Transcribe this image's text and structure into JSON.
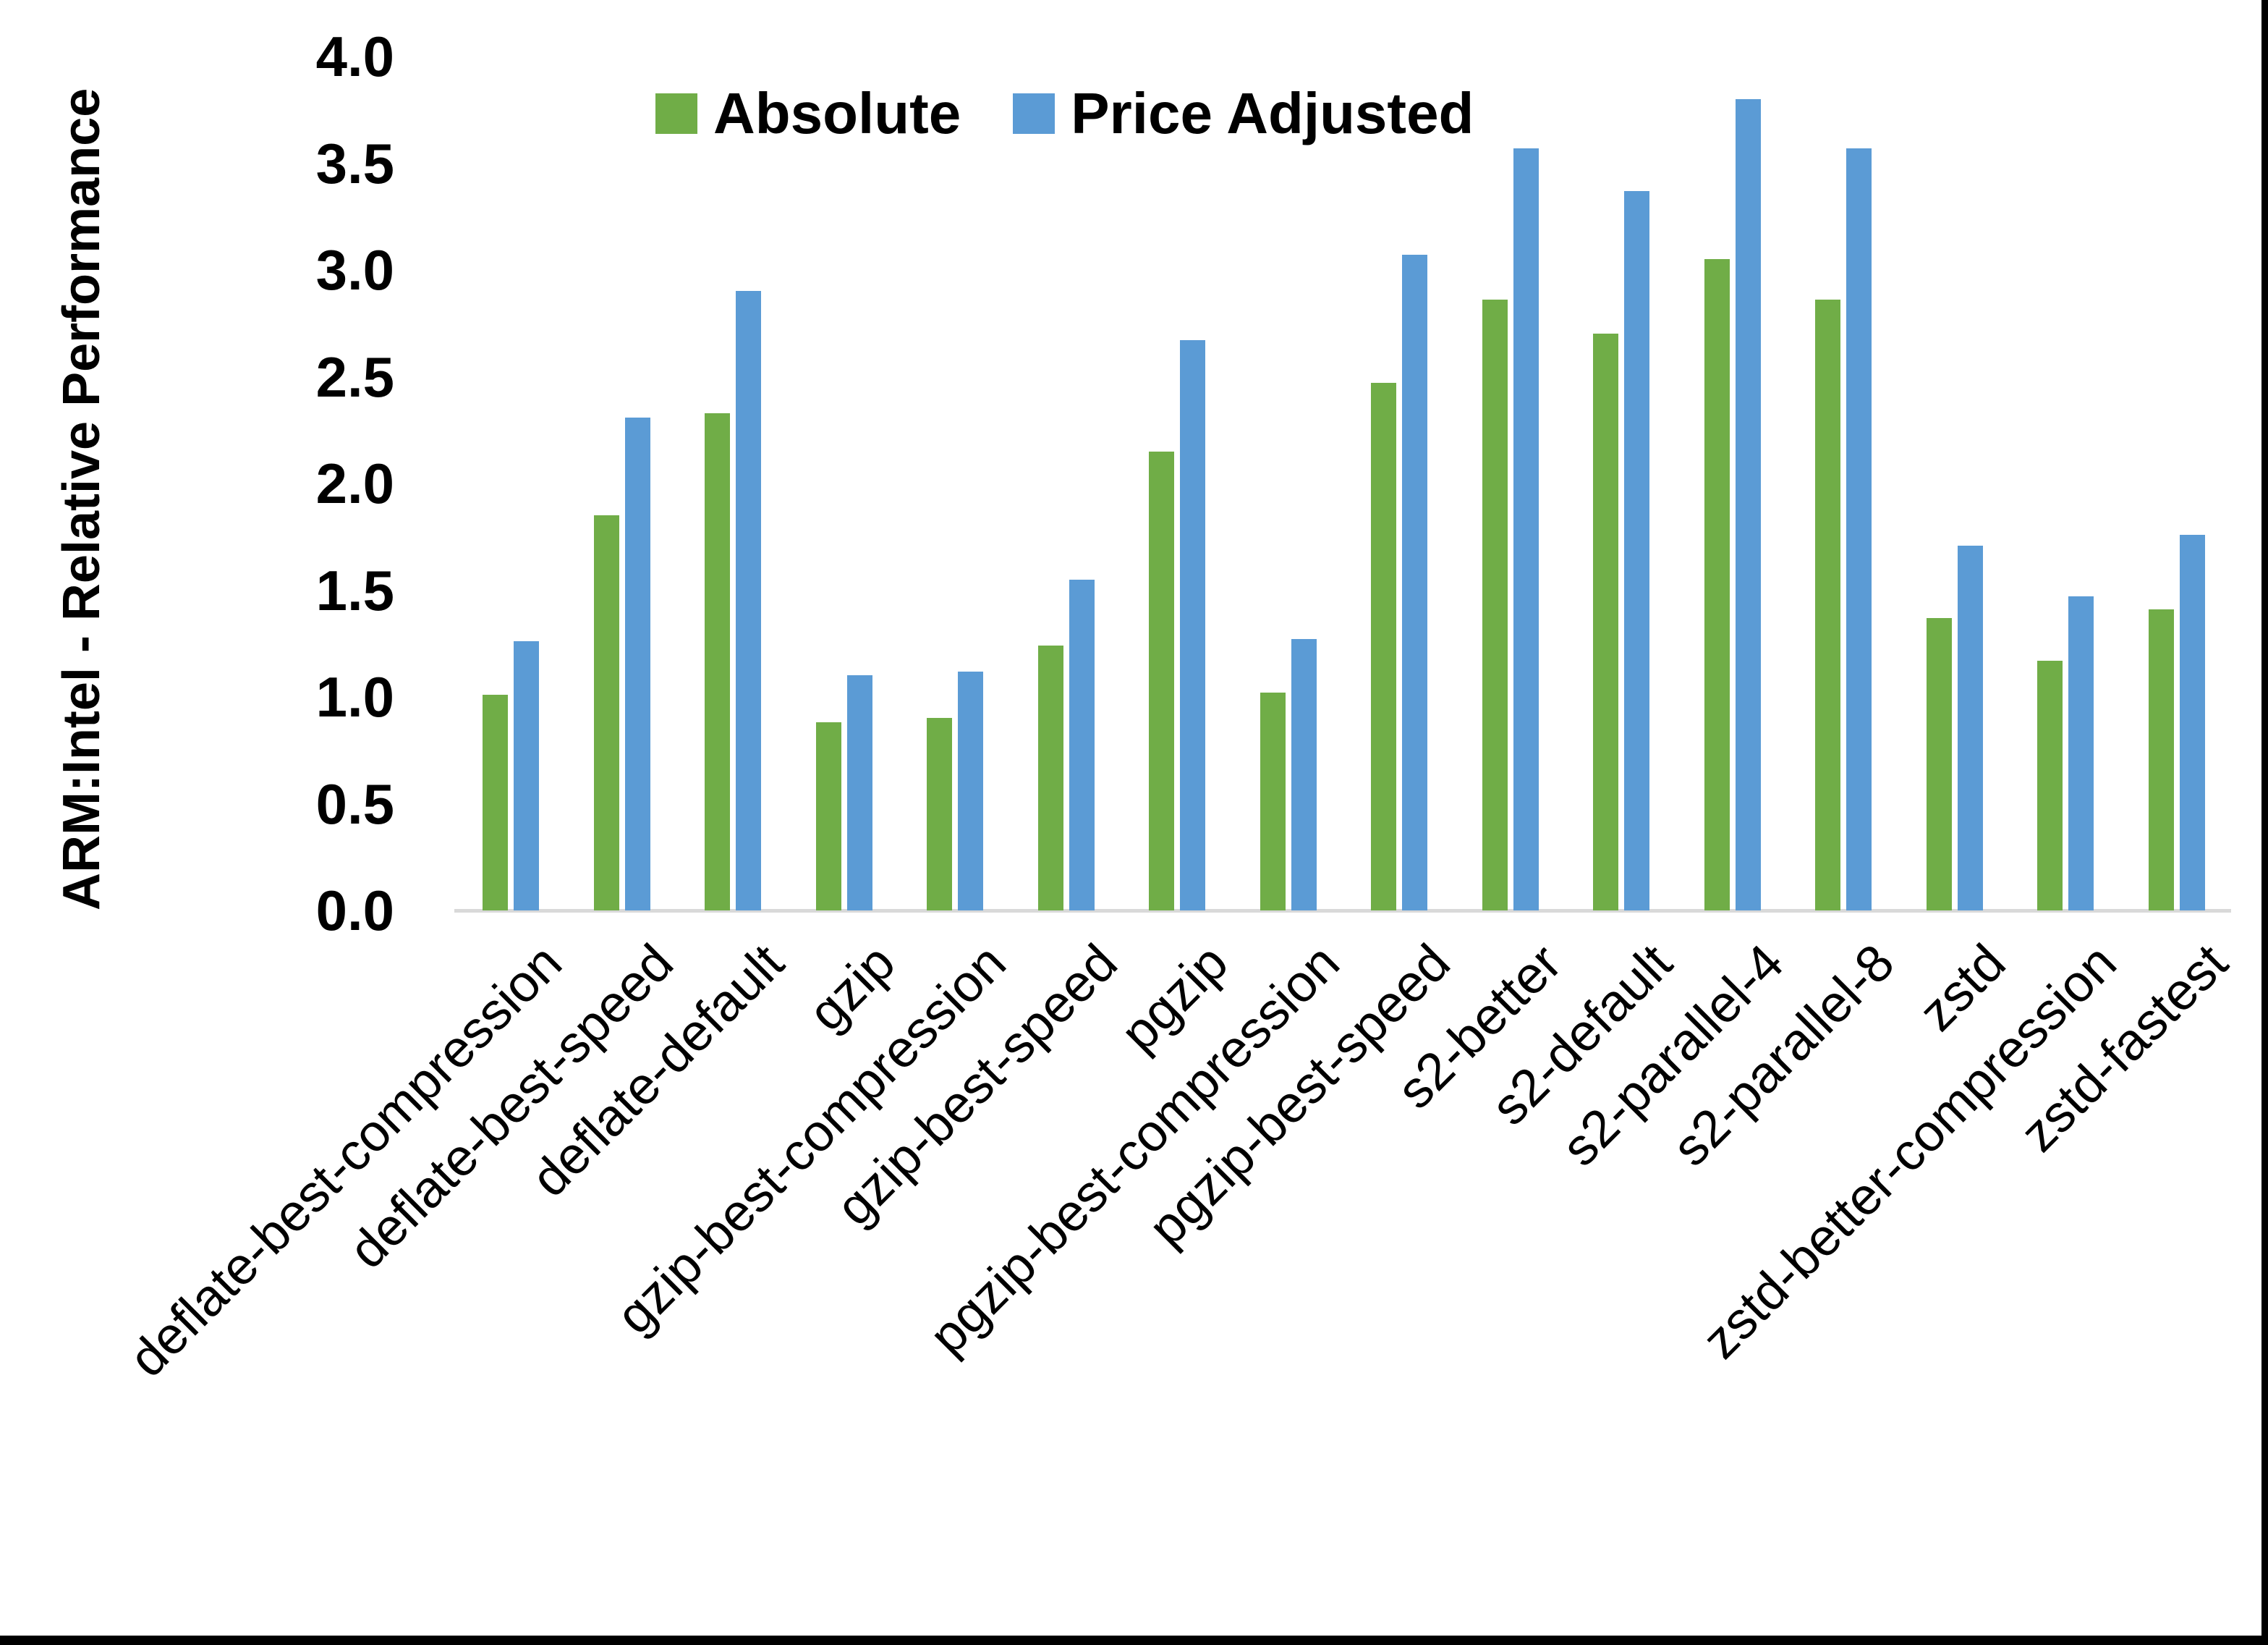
{
  "chart_data": {
    "type": "bar",
    "title": "",
    "ylabel": "ARM:Intel - Relative Performance",
    "xlabel": "",
    "ylim": [
      0.0,
      4.0
    ],
    "ytick_step": 0.5,
    "ytick_labels": [
      "0.0",
      "0.5",
      "1.0",
      "1.5",
      "2.0",
      "2.5",
      "3.0",
      "3.5",
      "4.0"
    ],
    "grid": false,
    "legend_position": "top-center",
    "categories": [
      "deflate-best-compression",
      "deflate-best-speed",
      "deflate-default",
      "gzip",
      "gzip-best-compression",
      "gzip-best-speed",
      "pgzip",
      "pgzip-best-compression",
      "pgzip-best-speed",
      "s2-better",
      "s2-default",
      "s2-parallel-4",
      "s2-parallel-8",
      "zstd",
      "zstd-better-compression",
      "zstd-fastest"
    ],
    "series": [
      {
        "name": "Absolute",
        "color": "#70AD47",
        "values": [
          1.01,
          1.85,
          2.33,
          0.88,
          0.9,
          1.24,
          2.15,
          1.02,
          2.47,
          2.86,
          2.7,
          3.05,
          2.86,
          1.37,
          1.17,
          1.41
        ]
      },
      {
        "name": "Price Adjusted",
        "color": "#5B9BD5",
        "values": [
          1.26,
          2.31,
          2.9,
          1.1,
          1.12,
          1.55,
          2.67,
          1.27,
          3.07,
          3.57,
          3.37,
          3.8,
          3.57,
          1.71,
          1.47,
          1.76
        ]
      }
    ],
    "axis_line_color": "#d9d9d9"
  }
}
